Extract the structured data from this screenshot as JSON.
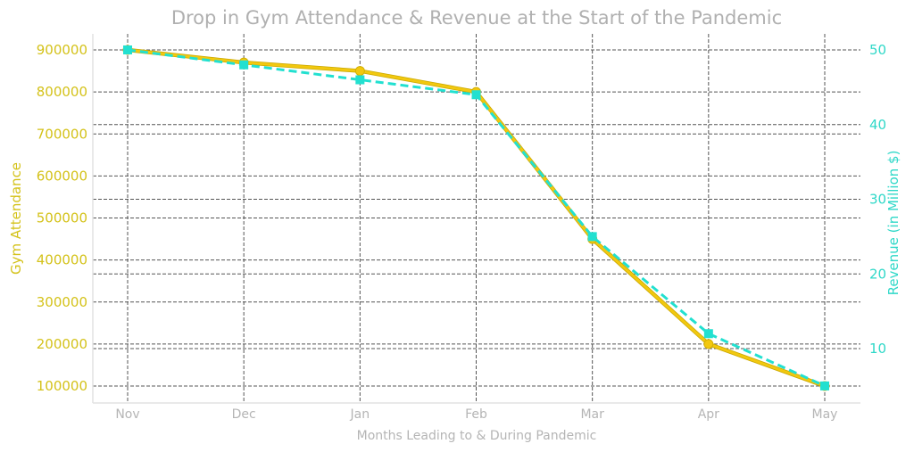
{
  "chart_data": {
    "type": "line",
    "title": "Drop in Gym Attendance & Revenue at the Start of the Pandemic",
    "xlabel": "Months Leading to & During Pandemic",
    "ylabel": "Gym Attendance",
    "y2label": "Revenue (in Million $)",
    "categories": [
      "Nov",
      "Dec",
      "Jan",
      "Feb",
      "Mar",
      "Apr",
      "May"
    ],
    "ylim": [
      60000,
      930000
    ],
    "y2lim": [
      3.5,
      53.5
    ],
    "yticks": [
      100000,
      200000,
      300000,
      400000,
      500000,
      600000,
      700000,
      800000,
      900000
    ],
    "ytick_labels": [
      "100000",
      "200000",
      "300000",
      "400000",
      "500000",
      "600000",
      "700000",
      "800000",
      "900000"
    ],
    "y2ticks": [
      10,
      20,
      30,
      40,
      50
    ],
    "y2tick_labels": [
      "10",
      "20",
      "30",
      "40",
      "50"
    ],
    "grid": true,
    "legend": "none",
    "series": [
      {
        "name": "Gym Attendance",
        "axis": "left",
        "color": "#f2c80f",
        "style": "solid",
        "marker": "circle",
        "values": [
          900000,
          870000,
          850000,
          800000,
          450000,
          200000,
          100000
        ]
      },
      {
        "name": "Revenue (in Million $)",
        "axis": "right",
        "color": "#22e0d0",
        "style": "dashed",
        "marker": "square",
        "values": [
          50,
          48,
          46,
          44,
          25,
          12,
          5
        ]
      }
    ]
  }
}
